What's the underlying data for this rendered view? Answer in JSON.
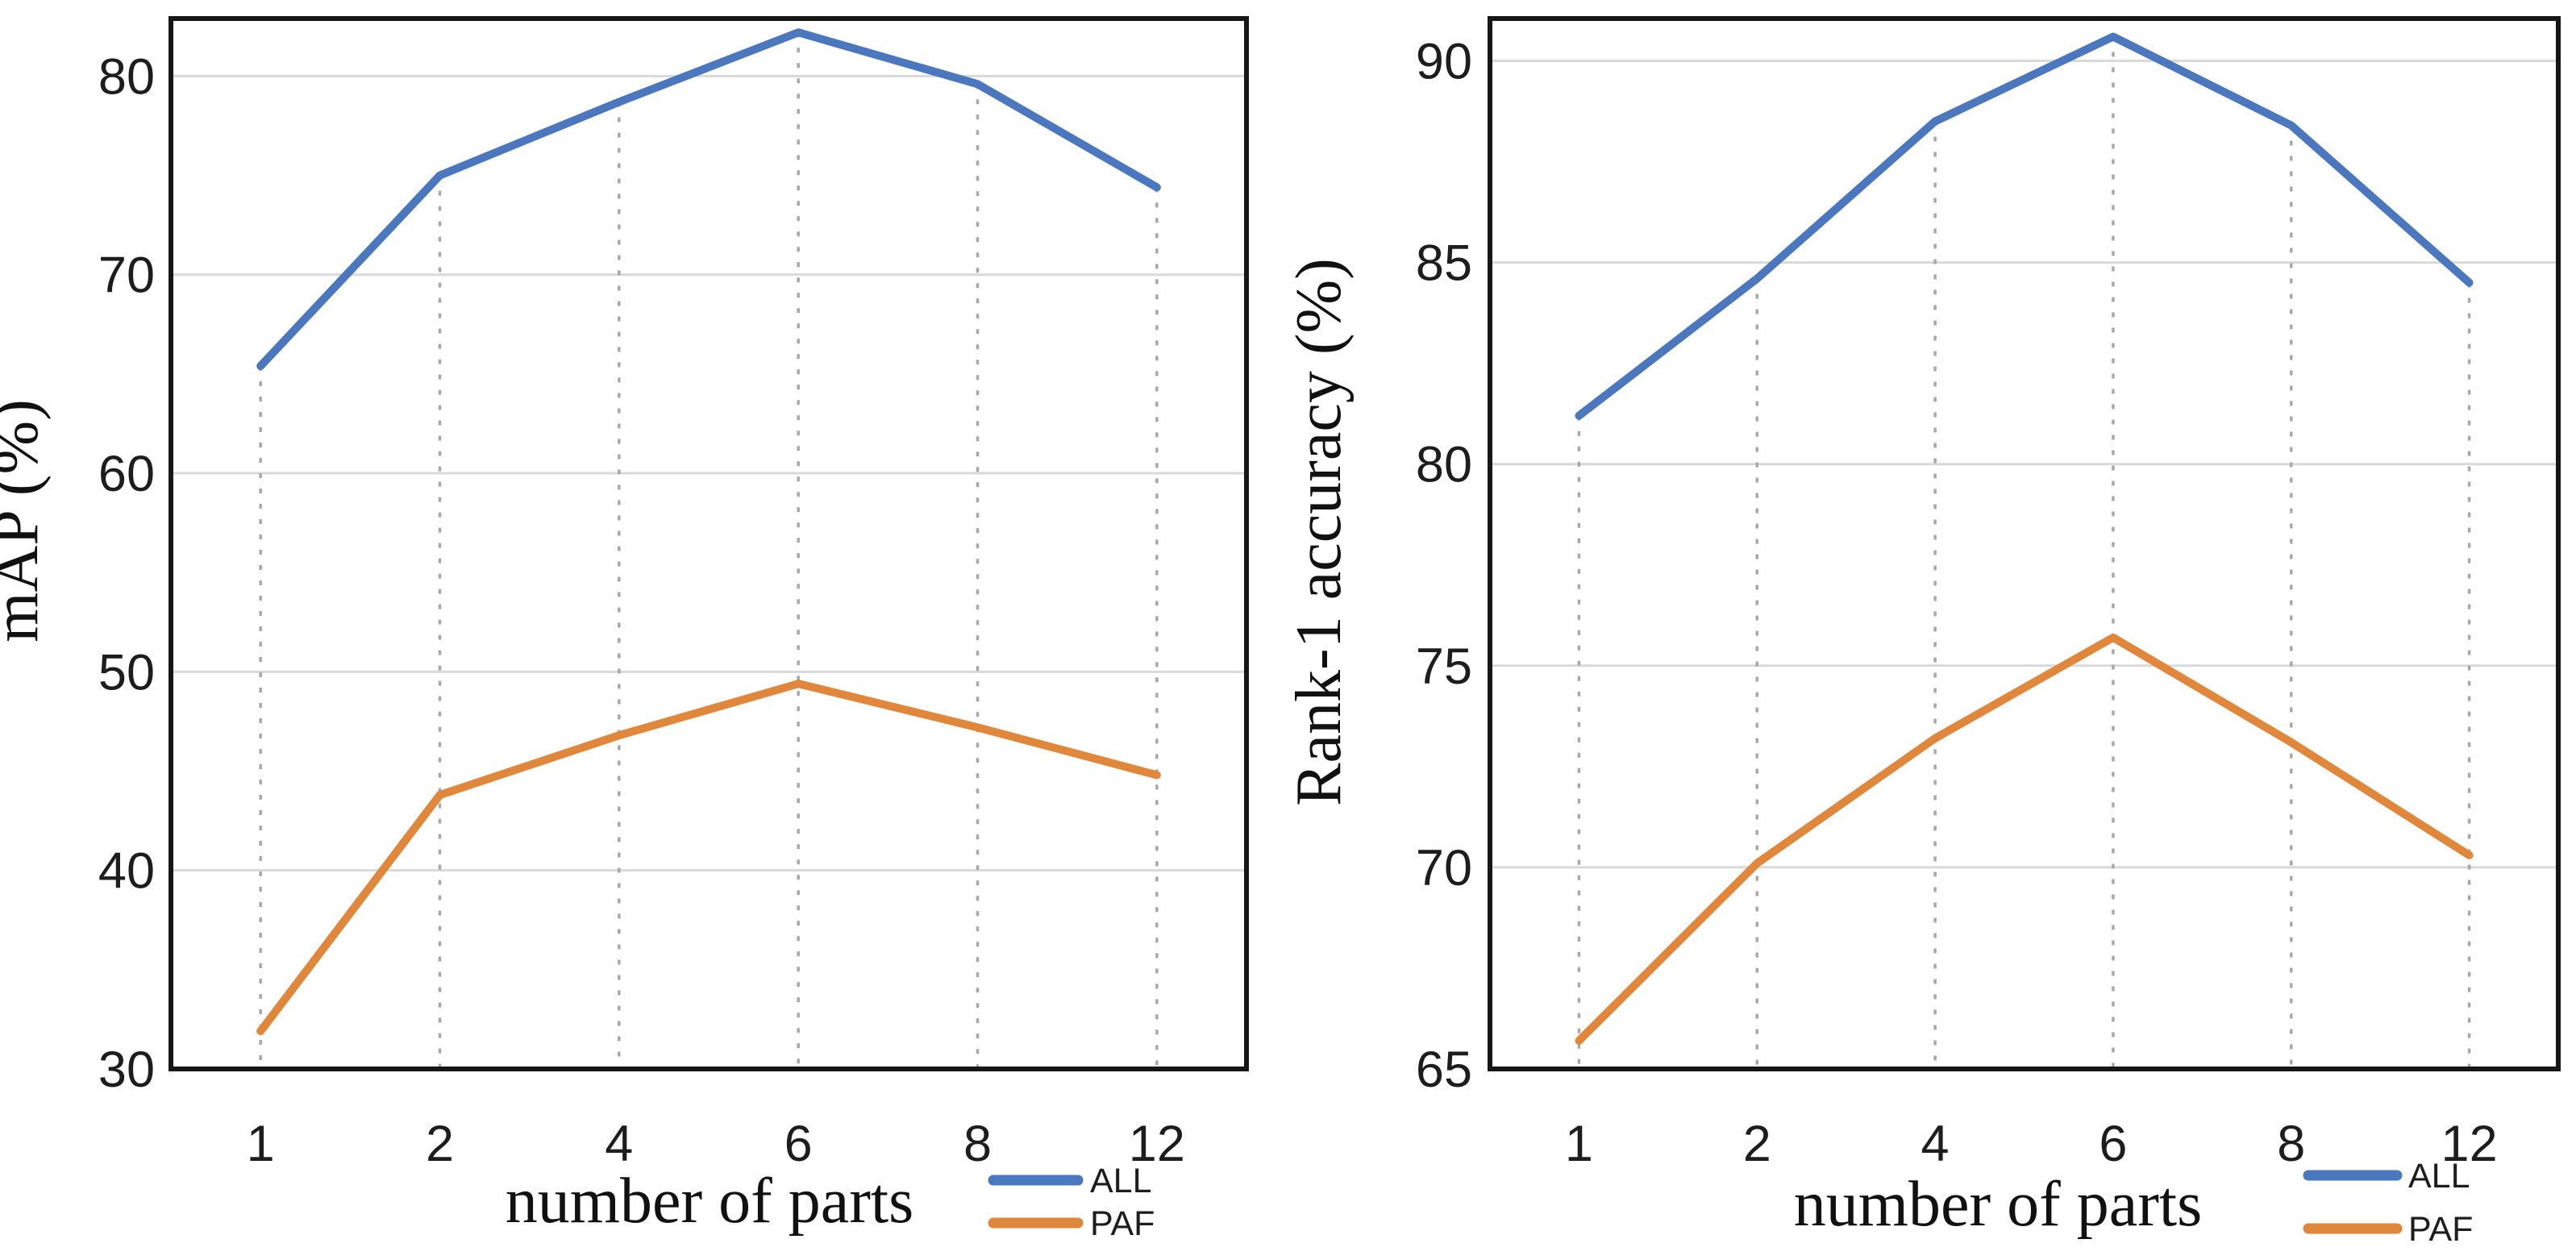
{
  "page": {
    "background": "#ffffff",
    "description_colors": {
      "all_series": "#4a77bd",
      "paf_series": "#e0873c",
      "gridline": "#d9d9d9",
      "drop_line": "#a8a8a8",
      "axis_border": "#161616",
      "text": "#1d1d1d"
    }
  },
  "chart_data": [
    {
      "type": "line",
      "title": "",
      "xlabel": "number of parts",
      "ylabel": "mAP (%)",
      "categories": [
        "1",
        "2",
        "4",
        "6",
        "8",
        "12"
      ],
      "series": [
        {
          "name": "ALL",
          "color": "#4a77bd",
          "values": [
            65.4,
            75.0,
            78.7,
            82.2,
            79.6,
            74.4
          ]
        },
        {
          "name": "PAF",
          "color": "#e0873c",
          "values": [
            31.9,
            43.8,
            46.8,
            49.4,
            47.2,
            44.8
          ]
        }
      ],
      "ylim": [
        30,
        82.9
      ],
      "yticks": [
        30,
        40,
        50,
        60,
        70,
        80
      ],
      "grid": true,
      "drop_lines_from_series": "ALL",
      "legend_position": "bottom-right",
      "legend": [
        "ALL",
        "PAF"
      ]
    },
    {
      "type": "line",
      "title": "",
      "xlabel": "number of parts",
      "ylabel": "Rank-1 accuracy (%)",
      "categories": [
        "1",
        "2",
        "4",
        "6",
        "8",
        "12"
      ],
      "series": [
        {
          "name": "ALL",
          "color": "#4a77bd",
          "values": [
            81.2,
            84.6,
            88.5,
            90.6,
            88.4,
            84.5
          ]
        },
        {
          "name": "PAF",
          "color": "#e0873c",
          "values": [
            65.7,
            70.1,
            73.2,
            75.7,
            73.1,
            70.3
          ]
        }
      ],
      "ylim": [
        65,
        91.05
      ],
      "yticks": [
        65,
        70,
        75,
        80,
        85,
        90
      ],
      "grid": true,
      "drop_lines_from_series": "ALL",
      "legend_position": "bottom-right",
      "legend": [
        "ALL",
        "PAF"
      ]
    }
  ]
}
